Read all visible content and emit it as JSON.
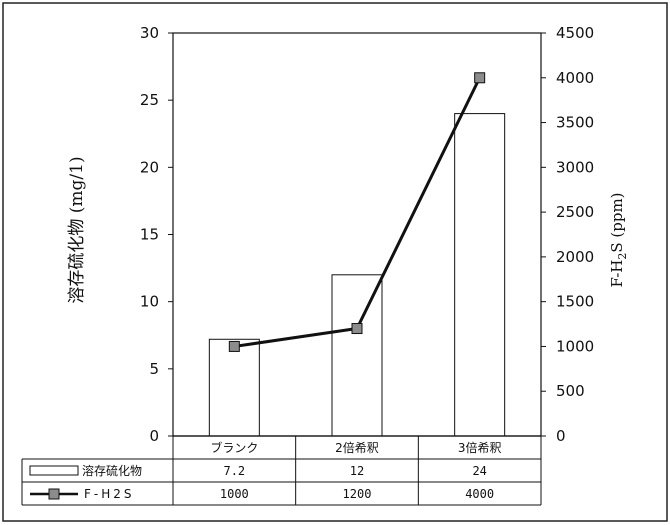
{
  "chart_data": {
    "type": "bar+line",
    "categories": [
      "ブランク",
      "2倍希釈",
      "3倍希釈"
    ],
    "ylabel": "溶存硫化物 (mg/1)",
    "y2label": "F-H2S (ppm)",
    "ylim": [
      0,
      30
    ],
    "y2lim": [
      0,
      4500
    ],
    "yticks": [
      0,
      5,
      10,
      15,
      20,
      25,
      30
    ],
    "y2ticks": [
      0,
      500,
      1000,
      1500,
      2000,
      2500,
      3000,
      3500,
      4000,
      4500
    ],
    "series": [
      {
        "name": "溶存硫化物",
        "type": "bar",
        "axis": "left",
        "values": [
          7.2,
          12,
          24
        ],
        "labels": [
          "7.2",
          "12",
          "24"
        ]
      },
      {
        "name": "F-H2S",
        "type": "line",
        "axis": "right",
        "values": [
          1000,
          1200,
          4000
        ],
        "labels": [
          "1000",
          "1200",
          "4000"
        ]
      }
    ],
    "colors": {
      "bar_fill": "#ffffff",
      "line": "#111111",
      "marker": "#8c8c8c"
    }
  }
}
